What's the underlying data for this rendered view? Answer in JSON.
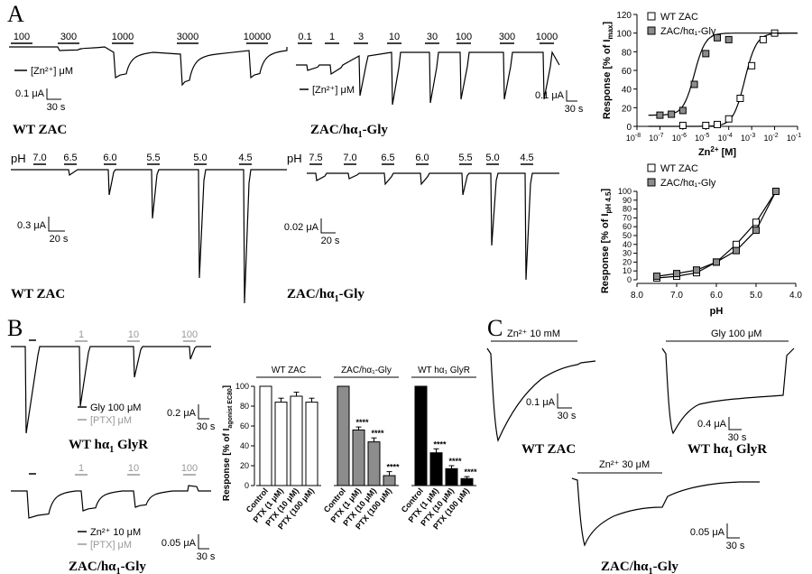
{
  "panels": {
    "A": "A",
    "B": "B",
    "C": "C"
  },
  "traces": {
    "zn_wt": {
      "name": "WT ZAC",
      "concs": [
        "100",
        "300",
        "1000",
        "3000",
        "10000"
      ],
      "legend": "[Zn²⁺] μM",
      "scale_y": "0.1 μA",
      "scale_x": "30 s"
    },
    "zn_chimera": {
      "name_main": "ZAC/hα",
      "name_sub": "1",
      "name_tail": "-Gly",
      "concs": [
        "0.1",
        "1",
        "3",
        "10",
        "30",
        "100",
        "300",
        "1000"
      ],
      "legend": "[Zn²⁺] μM",
      "scale_y": "0.1 μA",
      "scale_x": "30 s"
    },
    "ph_wt": {
      "name": "WT ZAC",
      "label": "pH",
      "values": [
        "7.0",
        "6.5",
        "6.0",
        "5.5",
        "5.0",
        "4.5"
      ],
      "scale_y": "0.3 μA",
      "scale_x": "20 s"
    },
    "ph_chimera": {
      "name_main": "ZAC/hα",
      "name_sub": "1",
      "name_tail": "-Gly",
      "label": "pH",
      "values": [
        "7.5",
        "7.0",
        "6.5",
        "6.0",
        "5.5",
        "5.0",
        "4.5"
      ],
      "scale_y": "0.02 μA",
      "scale_x": "20 s"
    },
    "ptx_glyr": {
      "name_main": "WT hα",
      "name_sub": "1",
      "name_tail": " GlyR",
      "ptx": [
        "1",
        "10",
        "100"
      ],
      "legend_agonist": "Gly 100 μM",
      "legend_ptx": "[PTX] μM",
      "scale_y": "0.2 μA",
      "scale_x": "30 s"
    },
    "ptx_chimera": {
      "name_main": "ZAC/hα",
      "name_sub": "1",
      "name_tail": "-Gly",
      "ptx": [
        "1",
        "10",
        "100"
      ],
      "legend_agonist": "Zn²⁺ 10 μM",
      "legend_ptx": "[PTX] μM",
      "scale_y": "0.05 μA",
      "scale_x": "30 s"
    },
    "c_wt": {
      "name": "WT ZAC",
      "app": "Zn²⁺ 10 mM",
      "scale_y": "0.1 μA",
      "scale_x": "30 s"
    },
    "c_glyr": {
      "name_main": "WT hα",
      "name_sub": "1",
      "name_tail": " GlyR",
      "app": "Gly 100 μM",
      "scale_y": "0.4 μA",
      "scale_x": "30 s"
    },
    "c_chimera": {
      "name_main": "ZAC/hα",
      "name_sub": "1",
      "name_tail": "-Gly",
      "app": "Zn²⁺ 30 μM",
      "scale_y": "0.05 μA",
      "scale_x": "30 s"
    }
  },
  "chart_data": [
    {
      "id": "zn_crc",
      "type": "scatter",
      "xlabel_main": "Zn",
      "xlabel_sup": "2+",
      "xlabel_tail": " [M]",
      "ylabel_main": "Response [% of I",
      "ylabel_sub": "max",
      "ylabel_tail": "]",
      "x_log": true,
      "xlim_exp": [
        -8,
        -1
      ],
      "ylim": [
        0,
        120
      ],
      "yticks": [
        0,
        20,
        40,
        60,
        80,
        100,
        120
      ],
      "xtick_exps": [
        -8,
        -7,
        -6,
        -5,
        -4,
        -3,
        -2,
        -1
      ],
      "legend_position": "top-left",
      "series": [
        {
          "name": "WT ZAC",
          "marker": "open-square",
          "color": "#000000",
          "log_x": [
            -6,
            -5,
            -4.5,
            -4,
            -3.5,
            -3,
            -2.5,
            -2
          ],
          "y": [
            1,
            1,
            2,
            8,
            30,
            65,
            93,
            100
          ],
          "fit_logEC50": -3.3,
          "fit_hill": 1.7
        },
        {
          "name": "ZAC/hα₁-Gly",
          "marker": "grey-square",
          "color": "#8c8c8c",
          "log_x": [
            -7,
            -6.5,
            -6,
            -5.5,
            -5,
            -4.5,
            -4
          ],
          "y": [
            12,
            13,
            17,
            45,
            78,
            95,
            93
          ],
          "fit_logEC50": -5.5,
          "fit_hill": 1.8
        }
      ]
    },
    {
      "id": "ph_crc",
      "type": "line",
      "xlabel": "pH",
      "ylabel_main": "Response [% of I",
      "ylabel_sub": "pH 4.5",
      "ylabel_tail": "]",
      "xlim": [
        8.0,
        4.0
      ],
      "xticks": [
        "8.0",
        "7.0",
        "6.0",
        "5.0",
        "4.0"
      ],
      "ylim": [
        0,
        100
      ],
      "yticks": [
        0,
        10,
        20,
        30,
        40,
        50,
        60,
        70,
        80,
        90,
        100
      ],
      "legend_position": "top-left",
      "series": [
        {
          "name": "WT ZAC",
          "marker": "open-square",
          "color": "#000000",
          "x": [
            7.5,
            7.0,
            6.5,
            6.0,
            5.5,
            5.0,
            4.5
          ],
          "y": [
            2,
            4,
            8,
            20,
            40,
            65,
            100
          ]
        },
        {
          "name": "ZAC/hα₁-Gly",
          "marker": "grey-square",
          "color": "#8c8c8c",
          "x": [
            7.5,
            7.0,
            6.5,
            6.0,
            5.5,
            5.0,
            4.5
          ],
          "y": [
            4,
            7,
            11,
            20,
            33,
            56,
            100
          ]
        }
      ]
    },
    {
      "id": "ptx_bars",
      "type": "bar",
      "ylabel_main": "Response [% of I",
      "ylabel_sub": "agonist EC80",
      "ylabel_tail": "]",
      "ylim": [
        0,
        100
      ],
      "yticks": [
        0,
        20,
        40,
        60,
        80,
        100
      ],
      "group_labels": [
        "WT ZAC",
        "ZAC/hα₁-Gly",
        "WT hα₁ GlyR"
      ],
      "categories": [
        "Control",
        "PTX (1 μM)",
        "PTX (10 μM)",
        "PTX (100 μM)"
      ],
      "significance": "****",
      "series": [
        {
          "name": "WT ZAC",
          "color": "#ffffff",
          "values": [
            100,
            84,
            90,
            84
          ],
          "errors": [
            0,
            4,
            4,
            4
          ],
          "stars": [
            false,
            false,
            false,
            false
          ]
        },
        {
          "name": "ZAC/hα₁-Gly",
          "color": "#8c8c8c",
          "values": [
            100,
            56,
            44,
            10
          ],
          "errors": [
            0,
            3,
            4,
            4
          ],
          "stars": [
            false,
            true,
            true,
            true
          ]
        },
        {
          "name": "WT hα₁ GlyR",
          "color": "#000000",
          "values": [
            100,
            33,
            17,
            7
          ],
          "errors": [
            0,
            4,
            3,
            2
          ],
          "stars": [
            false,
            true,
            true,
            true
          ]
        }
      ]
    }
  ]
}
